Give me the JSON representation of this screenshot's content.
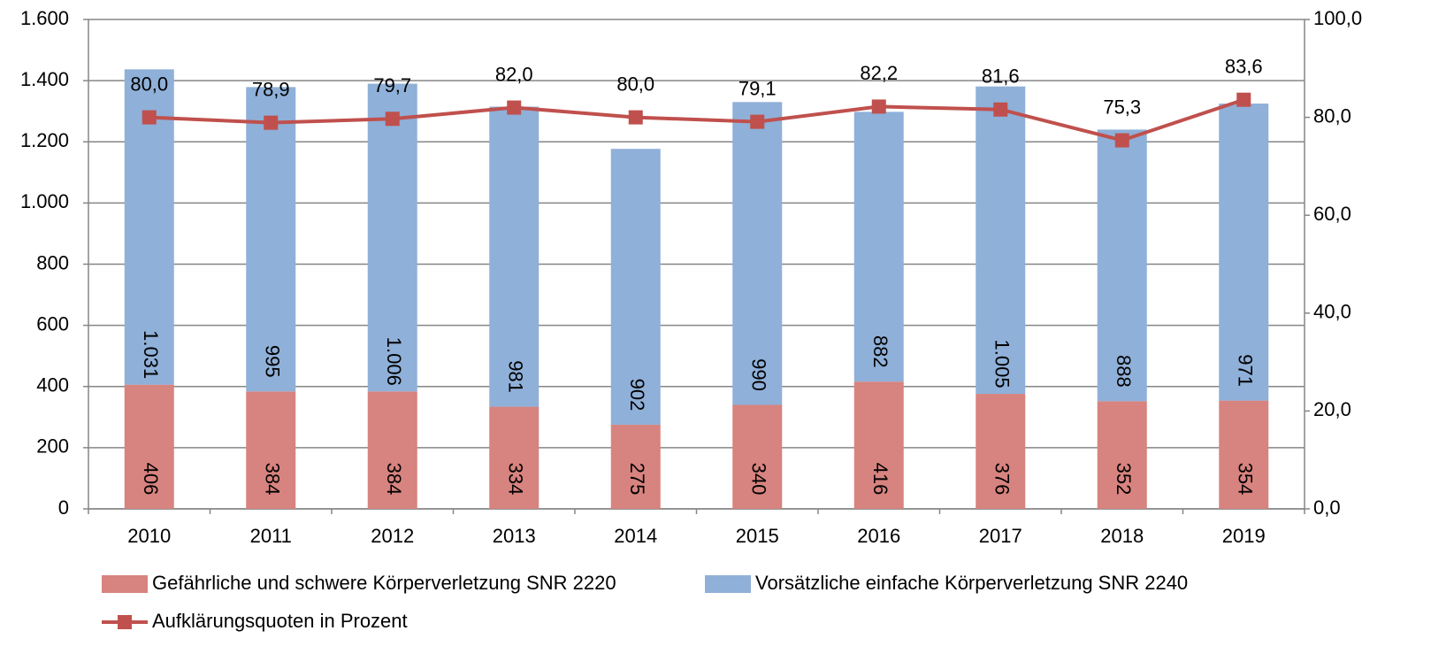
{
  "chart_data": {
    "type": "bar",
    "stacked": true,
    "categories": [
      "2010",
      "2011",
      "2012",
      "2013",
      "2014",
      "2015",
      "2016",
      "2017",
      "2018",
      "2019"
    ],
    "series": [
      {
        "name": "Gefährliche und schwere Körperverletzung SNR 2220",
        "color": "#d7837f",
        "type": "bar",
        "values": [
          406,
          384,
          384,
          334,
          275,
          340,
          416,
          376,
          352,
          354
        ]
      },
      {
        "name": "Vorsätzliche einfache Körperverletzung SNR 2240",
        "color": "#8fb0d8",
        "type": "bar",
        "values": [
          1031,
          995,
          1006,
          981,
          902,
          990,
          882,
          1005,
          888,
          971
        ],
        "value_labels": [
          "1.031",
          "995",
          "1.006",
          "981",
          "902",
          "990",
          "882",
          "1.005",
          "888",
          "971"
        ]
      },
      {
        "name": "Aufklärungsquoten in Prozent",
        "color": "#c0504d",
        "type": "line",
        "axis": "y2",
        "values": [
          80.0,
          78.9,
          79.7,
          82.0,
          80.0,
          79.1,
          82.2,
          81.6,
          75.3,
          83.6
        ],
        "value_labels": [
          "80,0",
          "78,9",
          "79,7",
          "82,0",
          "80,0",
          "79,1",
          "82,2",
          "81,6",
          "75,3",
          "83,6"
        ]
      }
    ],
    "ylim": [
      0,
      1600
    ],
    "yticks": [
      0,
      200,
      400,
      600,
      800,
      {
        "value": 1000,
        "label": "1.000"
      },
      {
        "value": 1200,
        "label": "1.200"
      },
      {
        "value": 1400,
        "label": "1.400"
      },
      {
        "value": 1600,
        "label": "1.600"
      }
    ],
    "y2lim": [
      0,
      100
    ],
    "y2ticks": [
      {
        "value": 0,
        "label": "0,0"
      },
      {
        "value": 20,
        "label": "20,0"
      },
      {
        "value": 40,
        "label": "40,0"
      },
      {
        "value": 60,
        "label": "60,0"
      },
      {
        "value": 80,
        "label": "80,0"
      },
      {
        "value": 100,
        "label": "100,0"
      }
    ],
    "grid": true
  }
}
